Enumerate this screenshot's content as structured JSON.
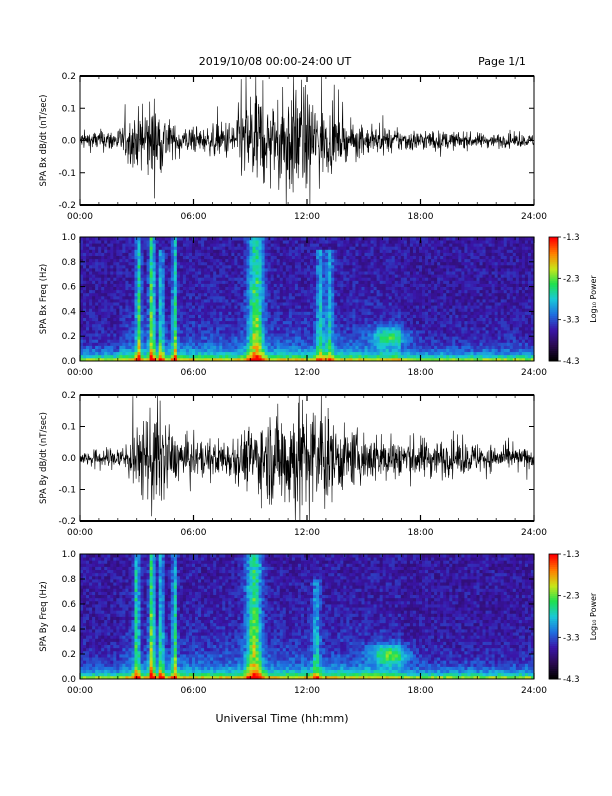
{
  "header": {
    "title": "2019/10/08  00:00-24:00 UT",
    "page_label": "Page 1/1"
  },
  "footer": {
    "xlabel": "Universal Time (hh:mm)"
  },
  "colors": {
    "trace": "#000000",
    "axes": "#000000",
    "colormap": [
      "#000000",
      "#2b0a52",
      "#3a15a8",
      "#1f6fe0",
      "#19c8d8",
      "#1fe050",
      "#c9e619",
      "#ff8000",
      "#ff0000"
    ]
  },
  "chart_data": [
    {
      "type": "line",
      "ylabel": "SPA Bx dB/dt (nT/sec)",
      "xlim": [
        0,
        24
      ],
      "ylim": [
        -0.2,
        0.2
      ],
      "xticks": [
        "00:00",
        "06:00",
        "12:00",
        "18:00",
        "24:00"
      ],
      "yticks": [
        "-0.2",
        "-0.1",
        "0.0",
        "0.1",
        "0.2"
      ],
      "envelope": [
        {
          "x": 0,
          "amp": 0.03
        },
        {
          "x": 2,
          "amp": 0.04
        },
        {
          "x": 3,
          "amp": 0.09
        },
        {
          "x": 3.8,
          "amp": 0.15
        },
        {
          "x": 5,
          "amp": 0.05
        },
        {
          "x": 6.5,
          "amp": 0.04
        },
        {
          "x": 8,
          "amp": 0.07
        },
        {
          "x": 9.3,
          "amp": 0.2
        },
        {
          "x": 10,
          "amp": 0.1
        },
        {
          "x": 11.2,
          "amp": 0.2
        },
        {
          "x": 12.3,
          "amp": 0.15
        },
        {
          "x": 14,
          "amp": 0.06
        },
        {
          "x": 16,
          "amp": 0.04
        },
        {
          "x": 18,
          "amp": 0.035
        },
        {
          "x": 21,
          "amp": 0.025
        },
        {
          "x": 24,
          "amp": 0.02
        }
      ]
    },
    {
      "type": "heatmap",
      "ylabel": "SPA Bx Freq (Hz)",
      "colorbar_label": "Log₁₀ Power",
      "xlim": [
        0,
        24
      ],
      "ylim": [
        0,
        1
      ],
      "xticks": [
        "00:00",
        "06:00",
        "12:00",
        "18:00",
        "24:00"
      ],
      "yticks": [
        "0.0",
        "0.2",
        "0.4",
        "0.6",
        "0.8",
        "1.0"
      ],
      "colorbar_ticks": [
        "-1.3",
        "-2.3",
        "-3.3",
        "-4.3"
      ],
      "zlim": [
        -4.3,
        -1.3
      ],
      "bursts": [
        {
          "x": 3.1,
          "width": 0.15,
          "strength": 0.8,
          "fmax": 1.0
        },
        {
          "x": 3.8,
          "width": 0.15,
          "strength": 1.0,
          "fmax": 1.0
        },
        {
          "x": 4.3,
          "width": 0.12,
          "strength": 0.7,
          "fmax": 0.9
        },
        {
          "x": 5.0,
          "width": 0.12,
          "strength": 0.8,
          "fmax": 1.0
        },
        {
          "x": 9.3,
          "width": 0.4,
          "strength": 0.9,
          "fmax": 1.0
        },
        {
          "x": 12.7,
          "width": 0.2,
          "strength": 0.55,
          "fmax": 0.9
        },
        {
          "x": 13.2,
          "width": 0.2,
          "strength": 0.5,
          "fmax": 0.9
        }
      ],
      "blob": {
        "x": 16.4,
        "y": 0.2,
        "rx": 0.9,
        "ry": 0.08,
        "strength": 0.7
      }
    },
    {
      "type": "line",
      "ylabel": "SPA By dB/dt (nT/sec)",
      "xlim": [
        0,
        24
      ],
      "ylim": [
        -0.2,
        0.2
      ],
      "xticks": [
        "00:00",
        "06:00",
        "12:00",
        "18:00",
        "24:00"
      ],
      "yticks": [
        "-0.2",
        "-0.1",
        "0.0",
        "0.1",
        "0.2"
      ],
      "envelope": [
        {
          "x": 0,
          "amp": 0.02
        },
        {
          "x": 2,
          "amp": 0.04
        },
        {
          "x": 3,
          "amp": 0.1
        },
        {
          "x": 3.9,
          "amp": 0.2
        },
        {
          "x": 5,
          "amp": 0.08
        },
        {
          "x": 6.5,
          "amp": 0.06
        },
        {
          "x": 8,
          "amp": 0.07
        },
        {
          "x": 10,
          "amp": 0.15
        },
        {
          "x": 11.2,
          "amp": 0.2
        },
        {
          "x": 12.5,
          "amp": 0.18
        },
        {
          "x": 14,
          "amp": 0.1
        },
        {
          "x": 16,
          "amp": 0.08
        },
        {
          "x": 18,
          "amp": 0.07
        },
        {
          "x": 21,
          "amp": 0.05
        },
        {
          "x": 24,
          "amp": 0.03
        }
      ]
    },
    {
      "type": "heatmap",
      "ylabel": "SPA By Freq (Hz)",
      "colorbar_label": "Log₁₀ Power",
      "xlim": [
        0,
        24
      ],
      "ylim": [
        0,
        1
      ],
      "xticks": [
        "00:00",
        "06:00",
        "12:00",
        "18:00",
        "24:00"
      ],
      "yticks": [
        "0.0",
        "0.2",
        "0.4",
        "0.6",
        "0.8",
        "1.0"
      ],
      "colorbar_ticks": [
        "-1.3",
        "-2.3",
        "-3.3",
        "-4.3"
      ],
      "zlim": [
        -4.3,
        -1.3
      ],
      "bursts": [
        {
          "x": 3.0,
          "width": 0.15,
          "strength": 0.8,
          "fmax": 1.0
        },
        {
          "x": 3.8,
          "width": 0.15,
          "strength": 1.0,
          "fmax": 1.0
        },
        {
          "x": 4.3,
          "width": 0.12,
          "strength": 0.75,
          "fmax": 1.0
        },
        {
          "x": 5.0,
          "width": 0.12,
          "strength": 0.8,
          "fmax": 1.0
        },
        {
          "x": 9.2,
          "width": 0.4,
          "strength": 0.95,
          "fmax": 1.0
        },
        {
          "x": 12.5,
          "width": 0.2,
          "strength": 0.5,
          "fmax": 0.8
        }
      ],
      "blob": {
        "x": 16.4,
        "y": 0.2,
        "rx": 1.0,
        "ry": 0.08,
        "strength": 0.8
      }
    }
  ]
}
